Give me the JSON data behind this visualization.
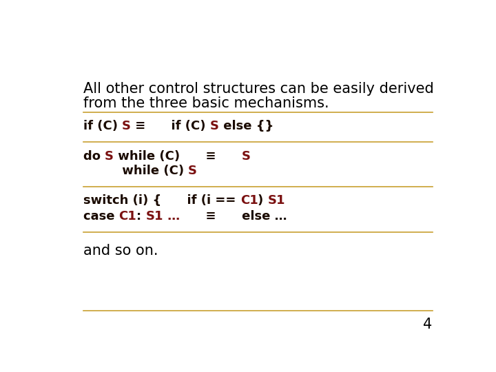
{
  "bg_color": "#ffffff",
  "slide_number": "4",
  "intro_text_line1": "All other control structures can be easily derived",
  "intro_text_line2": "from the three basic mechanisms.",
  "intro_color": "#000000",
  "intro_fontsize": 15.0,
  "code_fontsize": 13.0,
  "code_color_black": "#1a0a00",
  "code_color_red": "#7a1010",
  "separator_color": "#c8a030",
  "separator_lw": 1.2,
  "fig_width": 7.2,
  "fig_height": 5.4,
  "dpi": 100
}
